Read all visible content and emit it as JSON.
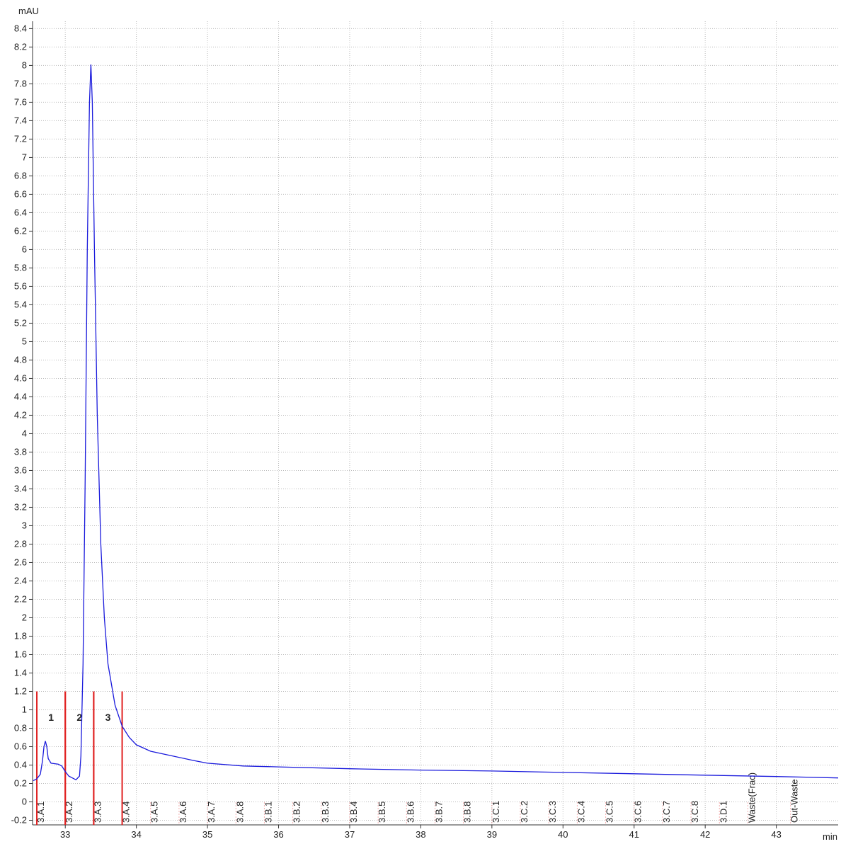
{
  "chart_data": {
    "type": "line",
    "y_label": "mAU",
    "x_label": "min",
    "xlim": [
      32.54,
      43.87
    ],
    "ylim": [
      -0.25,
      8.48
    ],
    "xticks": [
      33,
      34,
      35,
      36,
      37,
      38,
      39,
      40,
      41,
      42,
      43
    ],
    "yticks": [
      -0.2,
      0,
      0.2,
      0.4,
      0.6,
      0.8,
      1,
      1.2,
      1.4,
      1.6,
      1.8,
      2,
      2.2,
      2.4,
      2.6,
      2.8,
      3,
      3.2,
      3.4,
      3.6,
      3.8,
      4,
      4.2,
      4.4,
      4.6,
      4.8,
      5,
      5.2,
      5.4,
      5.6,
      5.8,
      6,
      6.2,
      6.4,
      6.6,
      6.8,
      7,
      7.2,
      7.4,
      7.6,
      7.8,
      8,
      8.2,
      8.4
    ],
    "grid": true,
    "x": [
      32.55,
      32.6,
      32.65,
      32.68,
      32.7,
      32.72,
      32.74,
      32.76,
      32.8,
      32.9,
      32.95,
      33.0,
      33.05,
      33.1,
      33.15,
      33.2,
      33.22,
      33.25,
      33.28,
      33.31,
      33.34,
      33.36,
      33.38,
      33.41,
      33.45,
      33.5,
      33.55,
      33.6,
      33.7,
      33.8,
      33.9,
      34.0,
      34.2,
      34.5,
      34.8,
      35.0,
      35.5,
      36,
      37,
      38,
      39,
      40,
      41,
      42,
      43,
      43.87
    ],
    "series": [
      {
        "color": "#1a1adc",
        "values": [
          0.23,
          0.25,
          0.3,
          0.45,
          0.6,
          0.66,
          0.6,
          0.47,
          0.42,
          0.41,
          0.39,
          0.33,
          0.28,
          0.26,
          0.24,
          0.28,
          0.5,
          1.5,
          3.5,
          6.0,
          7.6,
          8.01,
          7.6,
          6.0,
          4.2,
          2.8,
          2.0,
          1.5,
          1.05,
          0.82,
          0.7,
          0.62,
          0.55,
          0.5,
          0.45,
          0.42,
          0.39,
          0.38,
          0.36,
          0.345,
          0.335,
          0.32,
          0.305,
          0.29,
          0.275,
          0.26
        ]
      }
    ],
    "fraction_color": "#e02020",
    "fractions": [
      {
        "label": "3.A.1",
        "x": 32.6
      },
      {
        "label": "3.A.2",
        "x": 33.0
      },
      {
        "label": "3.A.3",
        "x": 33.4
      },
      {
        "label": "3.A.4",
        "x": 33.8
      },
      {
        "label": "3.A.5",
        "x": 34.2
      },
      {
        "label": "3.A.6",
        "x": 34.6
      },
      {
        "label": "3.A.7",
        "x": 35.0
      },
      {
        "label": "3.A.8",
        "x": 35.4
      },
      {
        "label": "3.B.1",
        "x": 35.8
      },
      {
        "label": "3.B.2",
        "x": 36.2
      },
      {
        "label": "3.B.3",
        "x": 36.6
      },
      {
        "label": "3.B.4",
        "x": 37.0
      },
      {
        "label": "3.B.5",
        "x": 37.4
      },
      {
        "label": "3.B.6",
        "x": 37.8
      },
      {
        "label": "3.B.7",
        "x": 38.2
      },
      {
        "label": "3.B.8",
        "x": 38.6
      },
      {
        "label": "3.C.1",
        "x": 39.0
      },
      {
        "label": "3.C.2",
        "x": 39.4
      },
      {
        "label": "3.C.3",
        "x": 39.8
      },
      {
        "label": "3.C.4",
        "x": 40.2
      },
      {
        "label": "3.C.5",
        "x": 40.6
      },
      {
        "label": "3.C.6",
        "x": 41.0
      },
      {
        "label": "3.C.7",
        "x": 41.4
      },
      {
        "label": "3.C.8",
        "x": 41.8
      },
      {
        "label": "3.D.1",
        "x": 42.2
      },
      {
        "label": "Waste(Frac)",
        "x": 42.6
      },
      {
        "label": "Out-Waste",
        "x": 43.2
      }
    ],
    "collect_level": 1.2,
    "collected": [
      {
        "label": "1",
        "start": 32.6,
        "end": 33.0
      },
      {
        "label": "2",
        "start": 33.0,
        "end": 33.4
      },
      {
        "label": "3",
        "start": 33.4,
        "end": 33.8
      }
    ]
  }
}
